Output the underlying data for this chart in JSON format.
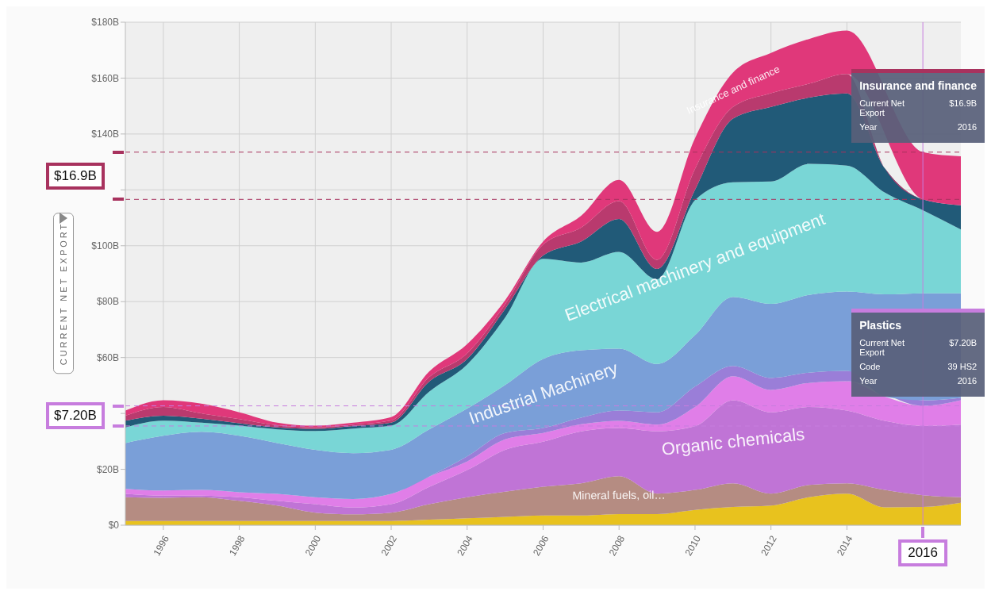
{
  "chart_data": {
    "type": "area",
    "stacked": true,
    "ylabel": "CURRENT NET EXPORT",
    "legend": false,
    "grid": true,
    "x": [
      1995,
      1996,
      1997,
      1998,
      1999,
      2000,
      2001,
      2002,
      2003,
      2004,
      2005,
      2006,
      2007,
      2008,
      2009,
      2010,
      2011,
      2012,
      2013,
      2014,
      2015,
      2016,
      2017
    ],
    "xlim": [
      1995,
      2017
    ],
    "xticks": [
      1996,
      1998,
      2000,
      2002,
      2004,
      2006,
      2008,
      2010,
      2012,
      2014
    ],
    "ylim": [
      0,
      180
    ],
    "yticks": [
      {
        "value": 0,
        "label": "$0"
      },
      {
        "value": 20,
        "label": "$20B"
      },
      {
        "value": 40,
        "label": null
      },
      {
        "value": 60,
        "label": "$60B"
      },
      {
        "value": 80,
        "label": "$80B"
      },
      {
        "value": 100,
        "label": "$100B"
      },
      {
        "value": 120,
        "label": null
      },
      {
        "value": 140,
        "label": "$140B"
      },
      {
        "value": 160,
        "label": "$160B"
      },
      {
        "value": 180,
        "label": "$180B"
      }
    ],
    "series": [
      {
        "color": "#e8c21e",
        "values": [
          1.5,
          1.5,
          1.5,
          1.5,
          1.5,
          1.5,
          1.5,
          1.5,
          2,
          2.5,
          3,
          3.5,
          3.5,
          4,
          4,
          5.5,
          6.5,
          7,
          10,
          11.3,
          6.4,
          6.5,
          8
        ]
      },
      {
        "name": "Mineral fuels, oil…",
        "color": "#b58c82",
        "values": [
          8.5,
          8.3,
          8.5,
          7.2,
          5.5,
          3,
          2.4,
          3,
          5.5,
          7.5,
          9,
          10.3,
          11.5,
          13.5,
          7.3,
          7.1,
          8.5,
          4.3,
          4.4,
          3.7,
          6.2,
          4.2,
          2
        ]
      },
      {
        "name": "Organic chemicals",
        "color": "#c074d6",
        "values": [
          1.2,
          0.8,
          0.6,
          1.3,
          1.7,
          3,
          2.4,
          3,
          6.2,
          9.7,
          15,
          16.1,
          18.6,
          17.3,
          22.3,
          22.8,
          29.7,
          29.1,
          27.9,
          26,
          24.7,
          24.8,
          26
        ]
      },
      {
        "color": "#e07ee8",
        "values": [
          1.8,
          1.8,
          2,
          1.8,
          2.5,
          2.5,
          3.1,
          3.7,
          3.7,
          3.1,
          3.7,
          3.1,
          2.5,
          2.5,
          2.4,
          6.9,
          8.6,
          8,
          8.6,
          10.5,
          8.7,
          7.2,
          8.7
        ]
      },
      {
        "color": "#9a7ed8",
        "values": [
          0,
          0,
          0,
          0,
          0,
          0,
          0,
          0,
          0,
          1.8,
          2.3,
          1.8,
          2.4,
          3.7,
          4.4,
          7.3,
          3.7,
          4.3,
          3.7,
          3.7,
          null,
          2,
          0.9
        ]
      },
      {
        "name": "Industrial Machinery",
        "color": "#7a9fd8",
        "values": [
          16.4,
          19.6,
          20.8,
          20.2,
          18.2,
          17,
          16.4,
          15.8,
          16.9,
          17.1,
          17.2,
          24.7,
          24.1,
          22.2,
          17.3,
          18.4,
          24.7,
          26.5,
          27.8,
          28.4,
          36.6,
          38.3,
          37.4
        ]
      },
      {
        "name": "Electrical machinery and equipment",
        "color": "#79d6d6",
        "values": [
          5.6,
          5.4,
          3.3,
          3.6,
          4.9,
          6.7,
          8.8,
          8.6,
          13.5,
          15.8,
          24.1,
          35.8,
          31.4,
          34.6,
          30.3,
          48.3,
          41,
          43.8,
          46.9,
          45.1,
          36.4,
          29.7,
          22.8
        ]
      },
      {
        "color": "#215a78",
        "values": [
          2.4,
          1.8,
          1.4,
          0.9,
          0.7,
          0.8,
          0.9,
          1.1,
          3.6,
          2,
          3.1,
          1.2,
          7.5,
          11.8,
          3.7,
          3.7,
          22.8,
          26.7,
          23.7,
          25.8,
          8.7,
          3.9,
          8.7
        ]
      },
      {
        "color": "#b93a6e",
        "values": [
          1.8,
          3.1,
          1.9,
          1.5,
          0.8,
          0.5,
          0.5,
          0.8,
          1.6,
          2,
          1.6,
          3.9,
          5,
          6.4,
          3.3,
          7.5,
          4.2,
          4.9,
          5,
          7,
          0,
          0,
          0
        ]
      },
      {
        "name": "Insurance and finance",
        "color": "#e0387a",
        "values": [
          1.8,
          2.4,
          3.5,
          2.4,
          0.9,
          0.6,
          0.7,
          1.2,
          2,
          3.3,
          1.5,
          1.1,
          4.2,
          7.6,
          10,
          11,
          12.3,
          14.4,
          16,
          15.5,
          null,
          16.9,
          17.5
        ]
      }
    ],
    "ref_lines": [
      {
        "axis": "y",
        "value": 133.5,
        "color": "#a8325e",
        "line_style": "dashed"
      },
      {
        "axis": "y",
        "value": 116.6,
        "color": "#a8325e",
        "line_style": "dashed"
      },
      {
        "axis": "y",
        "value": 42.7,
        "color": "#c77dde",
        "line_style": "dashed"
      },
      {
        "axis": "y",
        "value": 35.5,
        "color": "#c77dde",
        "line_style": "dashed"
      },
      {
        "axis": "x",
        "value": 2016,
        "label": "2016",
        "color": "#c77dde",
        "line_style": "solid"
      }
    ],
    "annotations": [
      "$16.9B",
      "$7.20B",
      "Insurance and finance",
      "Current Net Export",
      "$16.9B",
      "Year",
      "2016",
      "Plastics",
      "Current Net Export",
      "$7.20B",
      "Code",
      "39 HS2",
      "Year",
      "2016"
    ]
  }
}
